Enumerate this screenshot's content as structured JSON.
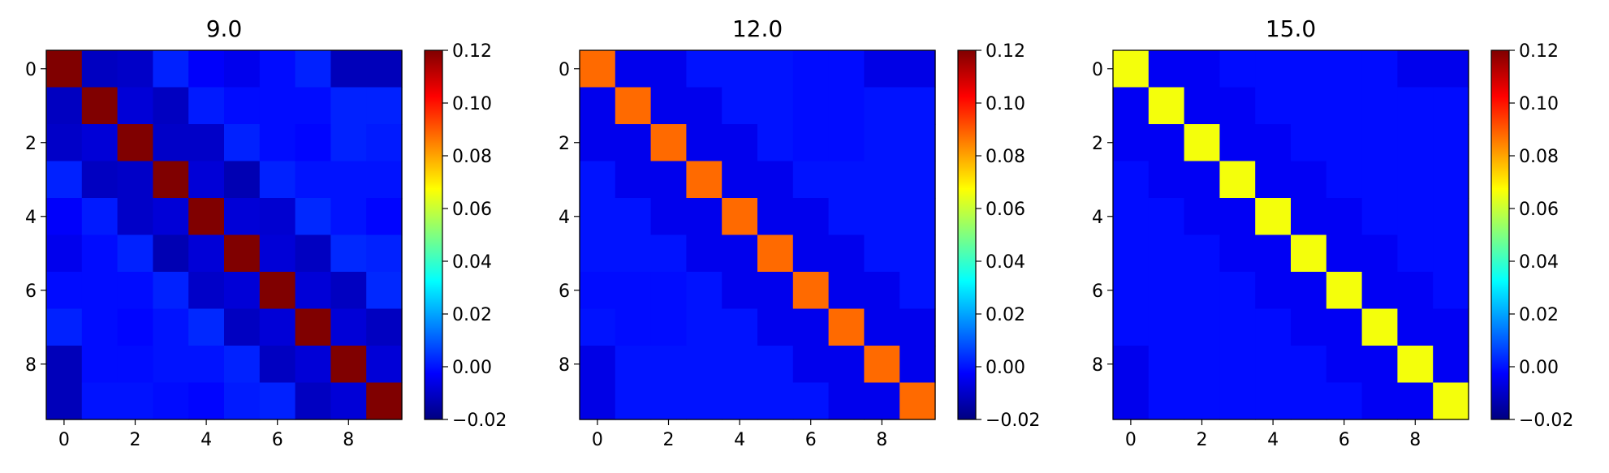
{
  "chart_data": [
    {
      "type": "heatmap",
      "title": "9.0",
      "x": [
        0,
        1,
        2,
        3,
        4,
        5,
        6,
        7,
        8,
        9
      ],
      "y": [
        0,
        1,
        2,
        3,
        4,
        5,
        6,
        7,
        8,
        9
      ],
      "xticks": [
        "0",
        "2",
        "4",
        "6",
        "8"
      ],
      "yticks": [
        "0",
        "2",
        "4",
        "6",
        "8"
      ],
      "colormap": "jet",
      "vmin": -0.02,
      "vmax": 0.12,
      "colorbar_ticks": [
        "0.12",
        "0.10",
        "0.08",
        "0.06",
        "0.04",
        "0.02",
        "0.00",
        "−0.02"
      ],
      "colorbar_values": [
        0.12,
        0.1,
        0.08,
        0.06,
        0.04,
        0.02,
        0.0,
        -0.02
      ],
      "values": [
        [
          0.12,
          -0.011,
          -0.01,
          0.002,
          -0.003,
          -0.005,
          -0.001,
          0.002,
          -0.012,
          -0.012
        ],
        [
          -0.011,
          0.12,
          -0.008,
          -0.011,
          0.001,
          -0.001,
          -0.001,
          -0.001,
          0.002,
          0.002
        ],
        [
          -0.01,
          -0.008,
          0.12,
          -0.01,
          -0.01,
          0.002,
          -0.001,
          -0.002,
          0.002,
          0.001
        ],
        [
          0.002,
          -0.011,
          -0.01,
          0.12,
          -0.008,
          -0.013,
          0.002,
          0.0,
          0.0,
          0.0
        ],
        [
          -0.003,
          0.001,
          -0.01,
          -0.008,
          0.12,
          -0.008,
          -0.009,
          0.003,
          0.0,
          -0.002
        ],
        [
          -0.005,
          -0.001,
          0.002,
          -0.013,
          -0.008,
          0.12,
          -0.008,
          -0.011,
          0.003,
          0.002
        ],
        [
          -0.001,
          -0.001,
          -0.001,
          0.002,
          -0.01,
          -0.008,
          0.12,
          -0.008,
          -0.011,
          0.003
        ],
        [
          0.002,
          -0.001,
          -0.002,
          0.0,
          0.003,
          -0.011,
          -0.008,
          0.12,
          -0.008,
          -0.011
        ],
        [
          -0.012,
          -0.001,
          -0.001,
          0.0,
          0.0,
          0.002,
          -0.011,
          -0.008,
          0.12,
          -0.008
        ],
        [
          -0.012,
          0.0,
          0.0,
          -0.001,
          -0.002,
          0.001,
          0.002,
          -0.011,
          -0.008,
          0.12
        ]
      ]
    },
    {
      "type": "heatmap",
      "title": "12.0",
      "x": [
        0,
        1,
        2,
        3,
        4,
        5,
        6,
        7,
        8,
        9
      ],
      "y": [
        0,
        1,
        2,
        3,
        4,
        5,
        6,
        7,
        8,
        9
      ],
      "xticks": [
        "0",
        "2",
        "4",
        "6",
        "8"
      ],
      "yticks": [
        "0",
        "2",
        "4",
        "6",
        "8"
      ],
      "colormap": "jet",
      "vmin": -0.02,
      "vmax": 0.12,
      "colorbar_ticks": [
        "0.12",
        "0.10",
        "0.08",
        "0.06",
        "0.04",
        "0.02",
        "0.00",
        "−0.02"
      ],
      "colorbar_values": [
        0.12,
        0.1,
        0.08,
        0.06,
        0.04,
        0.02,
        0.0,
        -0.02
      ],
      "values": [
        [
          0.088,
          -0.005,
          -0.005,
          0.0,
          0.0,
          0.0,
          -0.001,
          -0.001,
          -0.006,
          -0.006
        ],
        [
          -0.005,
          0.088,
          -0.005,
          -0.005,
          0.0,
          0.0,
          -0.001,
          -0.001,
          0.0,
          0.0
        ],
        [
          -0.005,
          -0.005,
          0.088,
          -0.005,
          -0.005,
          0.0,
          -0.001,
          -0.001,
          0.0,
          0.0
        ],
        [
          0.0,
          -0.005,
          -0.005,
          0.088,
          -0.005,
          -0.005,
          0.0,
          0.0,
          0.0,
          0.0
        ],
        [
          0.0,
          0.0,
          -0.005,
          -0.005,
          0.088,
          -0.005,
          -0.005,
          0.0,
          0.0,
          0.0
        ],
        [
          0.0,
          0.0,
          0.0,
          -0.005,
          -0.005,
          0.088,
          -0.005,
          -0.005,
          0.0,
          0.0
        ],
        [
          -0.001,
          -0.001,
          -0.001,
          0.0,
          -0.005,
          -0.005,
          0.088,
          -0.005,
          -0.005,
          0.0
        ],
        [
          0.0,
          -0.001,
          -0.001,
          0.0,
          0.0,
          -0.005,
          -0.005,
          0.088,
          -0.005,
          -0.005
        ],
        [
          -0.006,
          0.0,
          0.0,
          0.0,
          0.0,
          0.0,
          -0.005,
          -0.005,
          0.088,
          -0.005
        ],
        [
          -0.006,
          0.0,
          0.0,
          0.0,
          0.0,
          0.0,
          0.0,
          -0.005,
          -0.005,
          0.088
        ]
      ]
    },
    {
      "type": "heatmap",
      "title": "15.0",
      "x": [
        0,
        1,
        2,
        3,
        4,
        5,
        6,
        7,
        8,
        9
      ],
      "y": [
        0,
        1,
        2,
        3,
        4,
        5,
        6,
        7,
        8,
        9
      ],
      "xticks": [
        "0",
        "2",
        "4",
        "6",
        "8"
      ],
      "yticks": [
        "0",
        "2",
        "4",
        "6",
        "8"
      ],
      "colormap": "jet",
      "vmin": -0.02,
      "vmax": 0.12,
      "colorbar_ticks": [
        "0.12",
        "0.10",
        "0.08",
        "0.06",
        "0.04",
        "0.02",
        "0.00",
        "−0.02"
      ],
      "colorbar_values": [
        0.12,
        0.1,
        0.08,
        0.06,
        0.04,
        0.02,
        0.0,
        -0.02
      ],
      "values": [
        [
          0.066,
          -0.004,
          -0.004,
          -0.001,
          -0.001,
          -0.001,
          -0.001,
          -0.001,
          -0.005,
          -0.005
        ],
        [
          -0.004,
          0.066,
          -0.004,
          -0.004,
          -0.001,
          -0.001,
          -0.001,
          -0.001,
          -0.001,
          -0.001
        ],
        [
          -0.004,
          -0.004,
          0.066,
          -0.004,
          -0.004,
          -0.001,
          -0.001,
          -0.001,
          -0.001,
          -0.001
        ],
        [
          -0.001,
          -0.004,
          -0.004,
          0.066,
          -0.004,
          -0.004,
          -0.001,
          -0.001,
          -0.001,
          -0.001
        ],
        [
          -0.001,
          -0.001,
          -0.004,
          -0.004,
          0.066,
          -0.004,
          -0.004,
          -0.001,
          -0.001,
          -0.001
        ],
        [
          -0.001,
          -0.001,
          -0.001,
          -0.004,
          -0.004,
          0.066,
          -0.004,
          -0.004,
          -0.001,
          -0.001
        ],
        [
          -0.001,
          -0.001,
          -0.001,
          -0.001,
          -0.004,
          -0.004,
          0.066,
          -0.004,
          -0.004,
          -0.001
        ],
        [
          -0.001,
          -0.001,
          -0.001,
          -0.001,
          -0.001,
          -0.004,
          -0.004,
          0.066,
          -0.004,
          -0.004
        ],
        [
          -0.005,
          -0.001,
          -0.001,
          -0.001,
          -0.001,
          -0.001,
          -0.004,
          -0.004,
          0.066,
          -0.004
        ],
        [
          -0.005,
          -0.001,
          -0.001,
          -0.001,
          -0.001,
          -0.001,
          -0.001,
          -0.004,
          -0.004,
          0.066
        ]
      ]
    }
  ]
}
